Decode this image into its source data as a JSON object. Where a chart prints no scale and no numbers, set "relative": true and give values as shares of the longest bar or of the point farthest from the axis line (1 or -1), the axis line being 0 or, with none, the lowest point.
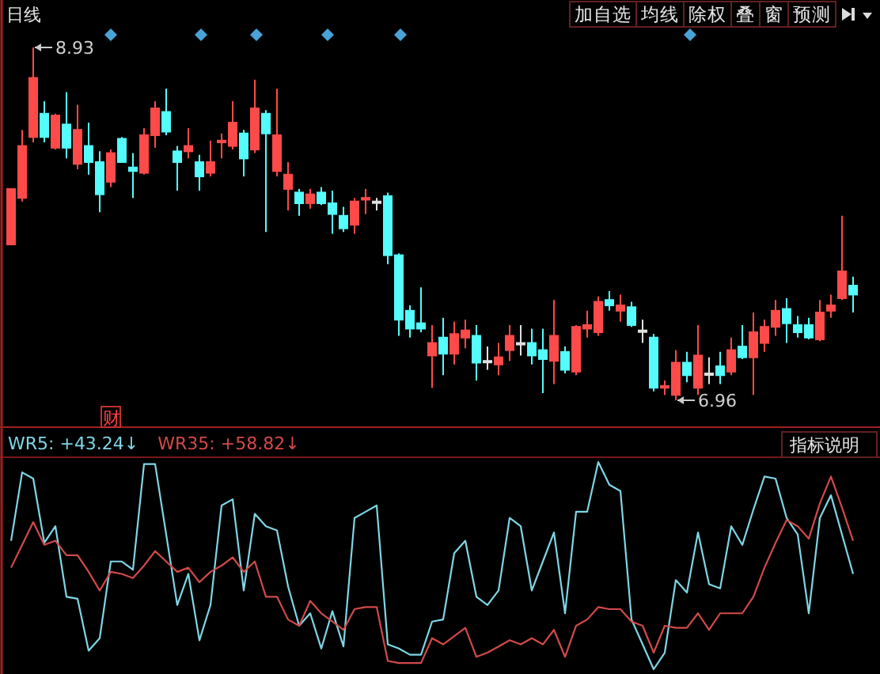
{
  "chart_data": [
    {
      "type": "candlestick",
      "title": "日线",
      "categories": [
        null,
        null,
        null,
        null,
        null,
        null,
        null,
        null,
        null,
        null,
        null,
        null,
        null,
        null,
        null,
        null,
        null,
        null,
        null,
        null,
        null,
        null,
        null,
        null,
        null,
        null,
        null,
        null,
        null,
        null,
        null,
        null,
        null,
        null,
        null,
        null,
        null,
        null,
        null,
        null,
        null,
        null,
        null,
        null,
        null,
        null,
        null,
        null,
        null,
        null,
        null,
        null,
        null,
        null,
        null,
        null,
        null,
        null,
        null,
        null,
        null,
        null,
        null,
        null,
        null,
        null,
        null,
        null,
        null,
        null,
        null,
        null,
        null,
        null,
        null,
        null,
        null
      ],
      "ohlc": [
        [
          7.83,
          8.14,
          7.83,
          8.14
        ],
        [
          8.09,
          8.47,
          8.07,
          8.38
        ],
        [
          8.43,
          8.93,
          8.4,
          8.76
        ],
        [
          8.56,
          8.63,
          8.4,
          8.43
        ],
        [
          8.37,
          8.56,
          8.36,
          8.55
        ],
        [
          8.5,
          8.68,
          8.31,
          8.37
        ],
        [
          8.28,
          8.61,
          8.25,
          8.47
        ],
        [
          8.38,
          8.51,
          8.22,
          8.29
        ],
        [
          8.29,
          8.35,
          8.01,
          8.11
        ],
        [
          8.18,
          8.36,
          8.15,
          8.34
        ],
        [
          8.42,
          8.43,
          8.29,
          8.29
        ],
        [
          8.26,
          8.34,
          8.09,
          8.24
        ],
        [
          8.23,
          8.48,
          8.22,
          8.44
        ],
        [
          8.44,
          8.63,
          8.37,
          8.59
        ],
        [
          8.57,
          8.7,
          8.44,
          8.46
        ],
        [
          8.35,
          8.38,
          8.13,
          8.29
        ],
        [
          8.35,
          8.48,
          8.31,
          8.38
        ],
        [
          8.29,
          8.33,
          8.13,
          8.21
        ],
        [
          8.23,
          8.41,
          8.21,
          8.29
        ],
        [
          8.4,
          8.45,
          8.31,
          8.41
        ],
        [
          8.38,
          8.63,
          8.36,
          8.51
        ],
        [
          8.45,
          8.47,
          8.21,
          8.31
        ],
        [
          8.36,
          8.75,
          8.34,
          8.59
        ],
        [
          8.56,
          8.58,
          7.9,
          8.45
        ],
        [
          8.24,
          8.7,
          8.21,
          8.44
        ],
        [
          8.14,
          8.29,
          8.02,
          8.22
        ],
        [
          8.12,
          8.14,
          7.99,
          8.06
        ],
        [
          8.06,
          8.14,
          8.03,
          8.11
        ],
        [
          8.12,
          8.15,
          8.05,
          8.06
        ],
        [
          8.06,
          8.13,
          7.89,
          8.0
        ],
        [
          7.99,
          8.04,
          7.9,
          7.92
        ],
        [
          7.94,
          8.09,
          7.89,
          8.07
        ],
        [
          8.08,
          8.14,
          8.0,
          8.09
        ],
        [
          8.07,
          8.09,
          8.02,
          8.07
        ],
        [
          8.1,
          8.12,
          7.72,
          7.77
        ],
        [
          7.77,
          7.78,
          7.32,
          7.41
        ],
        [
          7.46,
          7.49,
          7.31,
          7.36
        ],
        [
          7.39,
          7.59,
          7.34,
          7.36
        ],
        [
          7.21,
          7.38,
          7.03,
          7.28
        ],
        [
          7.31,
          7.42,
          7.1,
          7.22
        ],
        [
          7.22,
          7.4,
          7.16,
          7.33
        ],
        [
          7.31,
          7.41,
          7.25,
          7.35
        ],
        [
          7.32,
          7.38,
          7.07,
          7.17
        ],
        [
          7.18,
          7.26,
          7.13,
          7.18
        ],
        [
          7.16,
          7.28,
          7.1,
          7.2
        ],
        [
          7.24,
          7.38,
          7.18,
          7.32
        ],
        [
          7.28,
          7.38,
          7.21,
          7.28
        ],
        [
          7.28,
          7.36,
          7.16,
          7.21
        ],
        [
          7.24,
          7.36,
          7.0,
          7.19
        ],
        [
          7.18,
          7.52,
          7.05,
          7.32
        ],
        [
          7.23,
          7.26,
          7.11,
          7.13
        ],
        [
          7.12,
          7.38,
          7.1,
          7.37
        ],
        [
          7.36,
          7.46,
          7.31,
          7.38
        ],
        [
          7.34,
          7.54,
          7.32,
          7.51
        ],
        [
          7.52,
          7.57,
          7.46,
          7.49
        ],
        [
          7.46,
          7.55,
          7.4,
          7.49
        ],
        [
          7.48,
          7.51,
          7.37,
          7.38
        ],
        [
          7.35,
          7.41,
          7.28,
          7.35
        ],
        [
          7.31,
          7.33,
          7.01,
          7.03
        ],
        [
          7.03,
          7.07,
          6.99,
          7.04
        ],
        [
          6.99,
          7.24,
          6.96,
          7.17
        ],
        [
          7.17,
          7.23,
          7.06,
          7.1
        ],
        [
          7.03,
          7.38,
          6.99,
          7.21
        ],
        [
          7.11,
          7.2,
          7.05,
          7.11
        ],
        [
          7.15,
          7.23,
          7.05,
          7.1
        ],
        [
          7.12,
          7.31,
          7.1,
          7.24
        ],
        [
          7.26,
          7.38,
          7.19,
          7.2
        ],
        [
          7.2,
          7.45,
          6.99,
          7.34
        ],
        [
          7.28,
          7.41,
          7.23,
          7.37
        ],
        [
          7.37,
          7.52,
          7.32,
          7.46
        ],
        [
          7.47,
          7.53,
          7.28,
          7.39
        ],
        [
          7.38,
          7.43,
          7.31,
          7.34
        ],
        [
          7.38,
          7.42,
          7.3,
          7.31
        ],
        [
          7.3,
          7.52,
          7.29,
          7.45
        ],
        [
          7.46,
          7.55,
          7.42,
          7.49
        ],
        [
          7.53,
          7.99,
          7.52,
          7.68
        ],
        [
          7.6,
          7.65,
          7.45,
          7.55
        ]
      ],
      "annotations": [
        "8.93",
        "6.96",
        "财",
        "加自选",
        "均线",
        "除权",
        "叠",
        "窗",
        "预测"
      ]
    },
    {
      "type": "line",
      "relative": true,
      "categories": [
        null,
        null,
        null,
        null,
        null,
        null,
        null,
        null,
        null,
        null,
        null,
        null,
        null,
        null,
        null,
        null,
        null,
        null,
        null,
        null,
        null,
        null,
        null,
        null,
        null,
        null,
        null,
        null,
        null,
        null,
        null,
        null,
        null,
        null,
        null,
        null,
        null,
        null,
        null,
        null,
        null,
        null,
        null,
        null,
        null,
        null,
        null,
        null,
        null,
        null,
        null,
        null,
        null,
        null,
        null,
        null,
        null,
        null,
        null,
        null,
        null,
        null,
        null,
        null,
        null,
        null,
        null,
        null,
        null,
        null,
        null,
        null,
        null,
        null,
        null,
        null,
        null
      ],
      "series": [
        {
          "name": "WR5:",
          "color": "#7fd6e6",
          "values": [
            0.62,
            0.95,
            0.92,
            0.61,
            0.69,
            0.35,
            0.34,
            0.09,
            0.15,
            0.52,
            0.52,
            0.48,
            0.99,
            0.99,
            0.65,
            0.31,
            0.46,
            0.14,
            0.31,
            0.79,
            0.82,
            0.38,
            0.75,
            0.69,
            0.67,
            0.4,
            0.21,
            0.27,
            0.1,
            0.28,
            0.11,
            0.73,
            0.76,
            0.79,
            0.12,
            0.1,
            0.07,
            0.07,
            0.23,
            0.24,
            0.56,
            0.62,
            0.35,
            0.31,
            0.38,
            0.73,
            0.69,
            0.38,
            0.52,
            0.66,
            0.27,
            0.76,
            0.76,
            1.0,
            0.89,
            0.86,
            0.24,
            0.12,
            0.0,
            0.08,
            0.43,
            0.37,
            0.66,
            0.41,
            0.39,
            0.69,
            0.6,
            0.77,
            0.93,
            0.92,
            0.73,
            0.65,
            0.27,
            0.73,
            0.84,
            0.65,
            0.46
          ]
        },
        {
          "name": "WR35:",
          "color": "#d24a4a",
          "values": [
            0.49,
            0.6,
            0.71,
            0.6,
            0.62,
            0.55,
            0.55,
            0.47,
            0.38,
            0.47,
            0.46,
            0.44,
            0.5,
            0.57,
            0.52,
            0.47,
            0.49,
            0.42,
            0.47,
            0.5,
            0.54,
            0.47,
            0.52,
            0.35,
            0.35,
            0.24,
            0.21,
            0.33,
            0.27,
            0.23,
            0.19,
            0.29,
            0.3,
            0.3,
            0.04,
            0.03,
            0.03,
            0.03,
            0.15,
            0.12,
            0.16,
            0.2,
            0.06,
            0.08,
            0.11,
            0.14,
            0.12,
            0.15,
            0.12,
            0.19,
            0.06,
            0.21,
            0.24,
            0.3,
            0.29,
            0.29,
            0.23,
            0.21,
            0.08,
            0.21,
            0.2,
            0.2,
            0.27,
            0.19,
            0.27,
            0.27,
            0.27,
            0.35,
            0.49,
            0.61,
            0.72,
            0.69,
            0.63,
            0.8,
            0.93,
            0.78,
            0.62
          ]
        }
      ],
      "annotations": [
        "+43.24↓",
        "+58.82↓",
        "指标说明"
      ]
    }
  ]
}
